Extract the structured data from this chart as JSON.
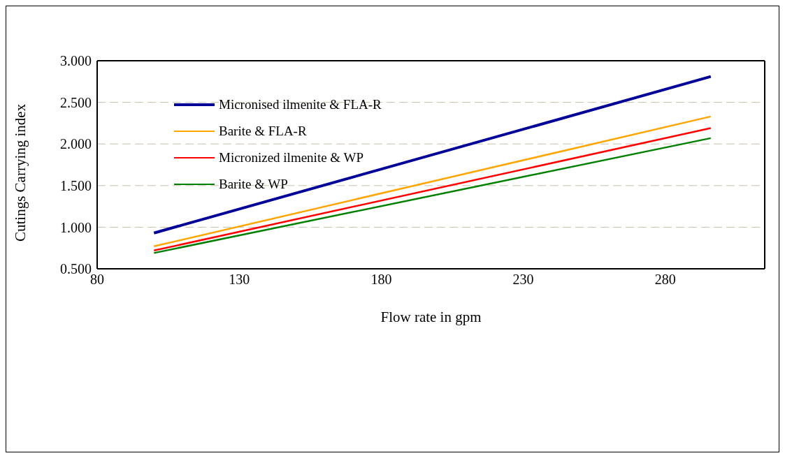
{
  "chart_data": {
    "type": "line",
    "xlabel": "Flow rate in gpm",
    "ylabel": "Cutings Carrying index",
    "x": [
      100,
      296
    ],
    "series": [
      {
        "name": "Micronised ilmenite & FLA-R",
        "color": "#000099",
        "values": [
          0.93,
          2.81
        ]
      },
      {
        "name": "Barite & FLA-R",
        "color": "#ffa500",
        "values": [
          0.77,
          2.33
        ]
      },
      {
        "name": "Micronized ilmenite & WP",
        "color": "#ff0000",
        "values": [
          0.72,
          2.19
        ]
      },
      {
        "name": "Barite & WP",
        "color": "#008000",
        "values": [
          0.69,
          2.07
        ]
      }
    ],
    "xlim": [
      80,
      315
    ],
    "xticks": [
      80,
      130,
      180,
      230,
      280
    ],
    "ylim": [
      0.5,
      3.0
    ],
    "yticks": [
      {
        "value": 0.5,
        "label": "0.500"
      },
      {
        "value": 1.0,
        "label": "1.000"
      },
      {
        "value": 1.5,
        "label": "1.500"
      },
      {
        "value": 2.0,
        "label": "2.000"
      },
      {
        "value": 2.5,
        "label": "2.500"
      },
      {
        "value": 3.0,
        "label": "3.000"
      }
    ],
    "grid": "y",
    "legend": "top left",
    "marker": "none",
    "line_style": "solid"
  }
}
